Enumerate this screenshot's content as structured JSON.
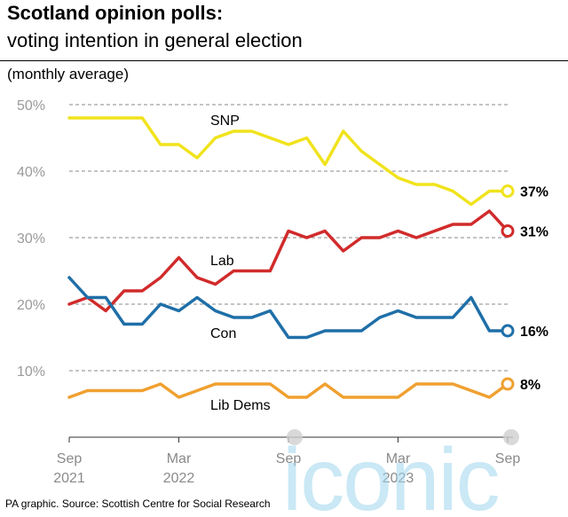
{
  "header": {
    "title": "Scotland opinion polls:",
    "subtitle": "voting intention in general election",
    "note": "(monthly average)"
  },
  "footer": {
    "source": "PA graphic. Source: Scottish Centre for Social Research"
  },
  "watermark": {
    "text": "iconic"
  },
  "chart_data": {
    "type": "line",
    "title": "Scotland opinion polls:",
    "subtitle": "voting intention in general election",
    "ylim": [
      0,
      50
    ],
    "yticks": [
      10,
      20,
      30,
      40,
      50
    ],
    "ytick_labels": [
      "10%",
      "20%",
      "30%",
      "40%",
      "50%"
    ],
    "x_range": [
      "Sep 2021",
      "Sep 2023"
    ],
    "xticks": [
      {
        "month_index": 0,
        "line1": "Sep",
        "line2": "2021"
      },
      {
        "month_index": 6,
        "line1": "Mar",
        "line2": "2022"
      },
      {
        "month_index": 12,
        "line1": "Sep",
        "line2": ""
      },
      {
        "month_index": 18,
        "line1": "Mar",
        "line2": "2023"
      },
      {
        "month_index": 24,
        "line1": "Sep",
        "line2": ""
      }
    ],
    "grid": true,
    "series": [
      {
        "name": "SNP",
        "color": "#f0e31c",
        "end_label": "37%",
        "values": [
          48,
          48,
          48,
          48,
          48,
          44,
          44,
          42,
          45,
          46,
          46,
          45,
          44,
          45,
          41,
          46,
          43,
          41,
          39,
          38,
          38,
          37,
          35,
          37,
          37
        ]
      },
      {
        "name": "Lab",
        "color": "#d12b2b",
        "end_label": "31%",
        "values": [
          20,
          21,
          19,
          22,
          22,
          24,
          27,
          24,
          23,
          25,
          25,
          25,
          31,
          30,
          31,
          28,
          30,
          30,
          31,
          30,
          31,
          32,
          32,
          34,
          31
        ]
      },
      {
        "name": "Con",
        "color": "#1f6fa8",
        "end_label": "16%",
        "values": [
          24,
          21,
          21,
          17,
          17,
          20,
          19,
          21,
          19,
          18,
          18,
          19,
          15,
          15,
          16,
          16,
          16,
          18,
          19,
          18,
          18,
          18,
          21,
          16,
          16
        ]
      },
      {
        "name": "Lib Dems",
        "color": "#f0a030",
        "end_label": "8%",
        "values": [
          6,
          7,
          7,
          7,
          7,
          8,
          6,
          7,
          8,
          8,
          8,
          8,
          6,
          6,
          8,
          6,
          6,
          6,
          6,
          8,
          8,
          8,
          7,
          6,
          8
        ]
      }
    ]
  }
}
